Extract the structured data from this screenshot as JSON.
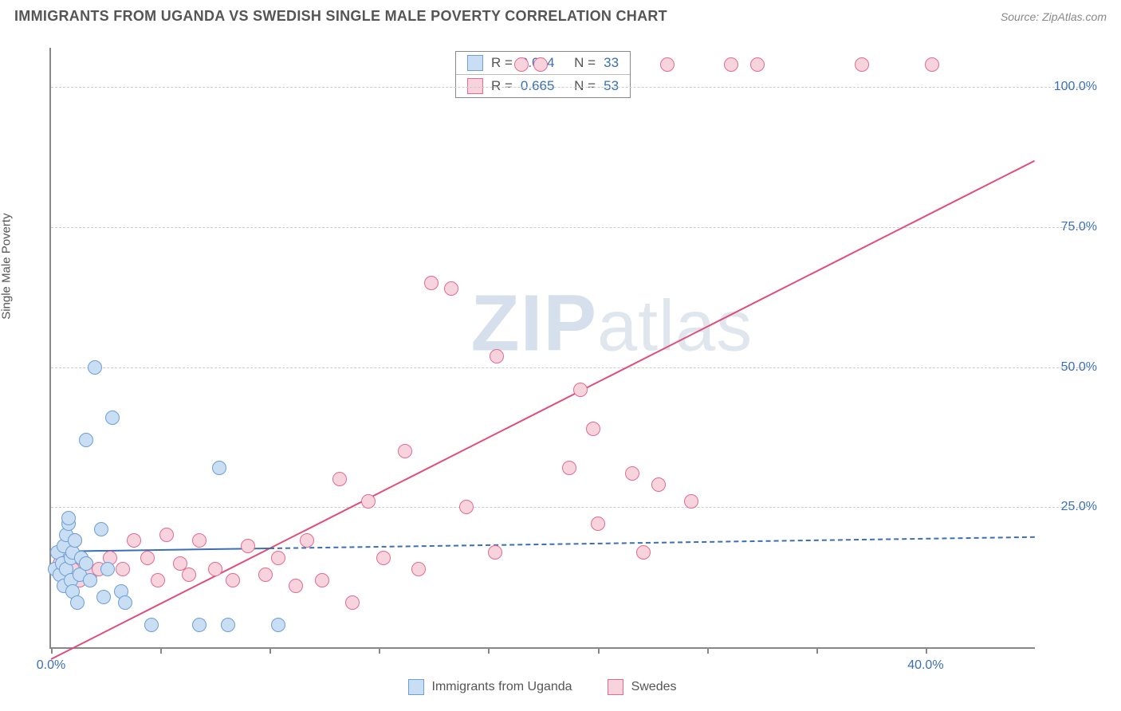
{
  "header": {
    "title": "IMMIGRANTS FROM UGANDA VS SWEDISH SINGLE MALE POVERTY CORRELATION CHART",
    "source_prefix": "Source: ",
    "source": "ZipAtlas.com"
  },
  "watermark": {
    "zip": "ZIP",
    "rest": "atlas"
  },
  "ylabel": "Single Male Poverty",
  "axes": {
    "xmin": 0,
    "xmax": 45,
    "ymin": 0,
    "ymax": 107,
    "xticks": [
      0,
      5,
      10,
      15,
      20,
      25,
      30,
      35,
      40
    ],
    "xtick_labels": {
      "0": "0.0%",
      "40": "40.0%"
    },
    "ygrid": [
      25,
      50,
      75,
      100
    ],
    "ytick_labels": {
      "25": "25.0%",
      "50": "50.0%",
      "75": "75.0%",
      "100": "100.0%"
    },
    "grid_color": "#cccccc",
    "axis_color": "#888888",
    "tick_label_color": "#3a6fb7"
  },
  "series": {
    "a": {
      "label": "Immigrants from Uganda",
      "fill": "#c9ddf3",
      "stroke": "#6a9fd8",
      "marker_radius": 9,
      "corr_R": "0.014",
      "corr_N": "33",
      "trend": {
        "x1": 0,
        "y1": 17.2,
        "x2": 45,
        "y2": 19.8,
        "solid_until_x": 10,
        "color": "#3a6fb7"
      },
      "points": [
        [
          0.2,
          14
        ],
        [
          0.3,
          17
        ],
        [
          0.4,
          13
        ],
        [
          0.5,
          15
        ],
        [
          0.6,
          18
        ],
        [
          0.6,
          11
        ],
        [
          0.7,
          20
        ],
        [
          0.7,
          14
        ],
        [
          0.8,
          22
        ],
        [
          0.8,
          23
        ],
        [
          0.9,
          16
        ],
        [
          0.9,
          12
        ],
        [
          1.0,
          17
        ],
        [
          1.0,
          10
        ],
        [
          1.1,
          19
        ],
        [
          1.2,
          8
        ],
        [
          1.3,
          13
        ],
        [
          1.4,
          16
        ],
        [
          1.6,
          37
        ],
        [
          1.6,
          15
        ],
        [
          1.8,
          12
        ],
        [
          2.0,
          50
        ],
        [
          2.3,
          21
        ],
        [
          2.4,
          9
        ],
        [
          2.6,
          14
        ],
        [
          2.8,
          41
        ],
        [
          3.2,
          10
        ],
        [
          3.4,
          8
        ],
        [
          4.6,
          4
        ],
        [
          6.8,
          4
        ],
        [
          7.7,
          32
        ],
        [
          8.1,
          4
        ],
        [
          10.4,
          4
        ]
      ]
    },
    "b": {
      "label": "Swedes",
      "fill": "#f7d3de",
      "stroke": "#e46a8f",
      "marker_radius": 9,
      "corr_R": "0.665",
      "corr_N": "53",
      "trend": {
        "x1": 0,
        "y1": -2,
        "x2": 45,
        "y2": 87,
        "solid_until_x": 45,
        "color": "#e14b78"
      },
      "points": [
        [
          0.4,
          15
        ],
        [
          0.6,
          13
        ],
        [
          0.8,
          17
        ],
        [
          1.0,
          14
        ],
        [
          1.1,
          19
        ],
        [
          1.3,
          12
        ],
        [
          1.4,
          16
        ],
        [
          1.6,
          15
        ],
        [
          1.8,
          13
        ],
        [
          2.2,
          14
        ],
        [
          2.7,
          16
        ],
        [
          3.3,
          14
        ],
        [
          3.8,
          19
        ],
        [
          4.4,
          16
        ],
        [
          4.9,
          12
        ],
        [
          5.3,
          20
        ],
        [
          5.9,
          15
        ],
        [
          6.3,
          13
        ],
        [
          6.8,
          19
        ],
        [
          7.5,
          14
        ],
        [
          8.3,
          12
        ],
        [
          9.0,
          18
        ],
        [
          9.8,
          13
        ],
        [
          10.4,
          16
        ],
        [
          11.2,
          11
        ],
        [
          11.7,
          19
        ],
        [
          12.4,
          12
        ],
        [
          13.2,
          30
        ],
        [
          13.8,
          8
        ],
        [
          14.5,
          26
        ],
        [
          15.2,
          16
        ],
        [
          16.2,
          35
        ],
        [
          16.8,
          14
        ],
        [
          17.4,
          65
        ],
        [
          18.3,
          64
        ],
        [
          19.0,
          25
        ],
        [
          20.3,
          17
        ],
        [
          20.4,
          52
        ],
        [
          21.5,
          104
        ],
        [
          22.4,
          104
        ],
        [
          23.7,
          32
        ],
        [
          24.2,
          46
        ],
        [
          24.8,
          39
        ],
        [
          25.0,
          22
        ],
        [
          26.6,
          31
        ],
        [
          27.1,
          17
        ],
        [
          27.8,
          29
        ],
        [
          28.2,
          104
        ],
        [
          29.3,
          26
        ],
        [
          31.1,
          104
        ],
        [
          32.3,
          104
        ],
        [
          37.1,
          104
        ],
        [
          40.3,
          104
        ]
      ]
    }
  },
  "legend_labels": {
    "R": "R =",
    "N": "N ="
  }
}
